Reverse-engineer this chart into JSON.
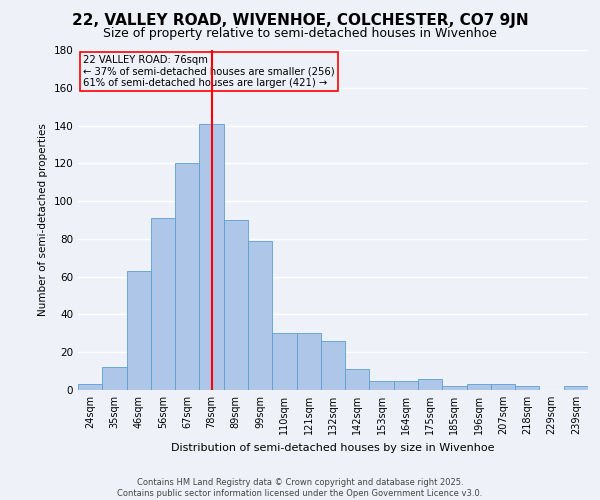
{
  "title": "22, VALLEY ROAD, WIVENHOE, COLCHESTER, CO7 9JN",
  "subtitle": "Size of property relative to semi-detached houses in Wivenhoe",
  "xlabel": "Distribution of semi-detached houses by size in Wivenhoe",
  "ylabel": "Number of semi-detached properties",
  "categories": [
    "24sqm",
    "35sqm",
    "46sqm",
    "56sqm",
    "67sqm",
    "78sqm",
    "89sqm",
    "99sqm",
    "110sqm",
    "121sqm",
    "132sqm",
    "142sqm",
    "153sqm",
    "164sqm",
    "175sqm",
    "185sqm",
    "196sqm",
    "207sqm",
    "218sqm",
    "229sqm",
    "239sqm"
  ],
  "values": [
    3,
    12,
    63,
    91,
    120,
    141,
    90,
    79,
    30,
    30,
    26,
    11,
    5,
    5,
    6,
    2,
    3,
    3,
    2,
    0,
    2
  ],
  "bar_color": "#aec6e8",
  "bar_edge_color": "#5a9fd4",
  "vline_x": 5,
  "vline_color": "red",
  "annotation_title": "22 VALLEY ROAD: 76sqm",
  "annotation_line1": "← 37% of semi-detached houses are smaller (256)",
  "annotation_line2": "61% of semi-detached houses are larger (421) →",
  "annotation_box_color": "red",
  "ylim": [
    0,
    180
  ],
  "yticks": [
    0,
    20,
    40,
    60,
    80,
    100,
    120,
    140,
    160,
    180
  ],
  "footer1": "Contains HM Land Registry data © Crown copyright and database right 2025.",
  "footer2": "Contains public sector information licensed under the Open Government Licence v3.0.",
  "bg_color": "#eef2f8",
  "grid_color": "#ffffff",
  "title_fontsize": 11,
  "subtitle_fontsize": 9
}
